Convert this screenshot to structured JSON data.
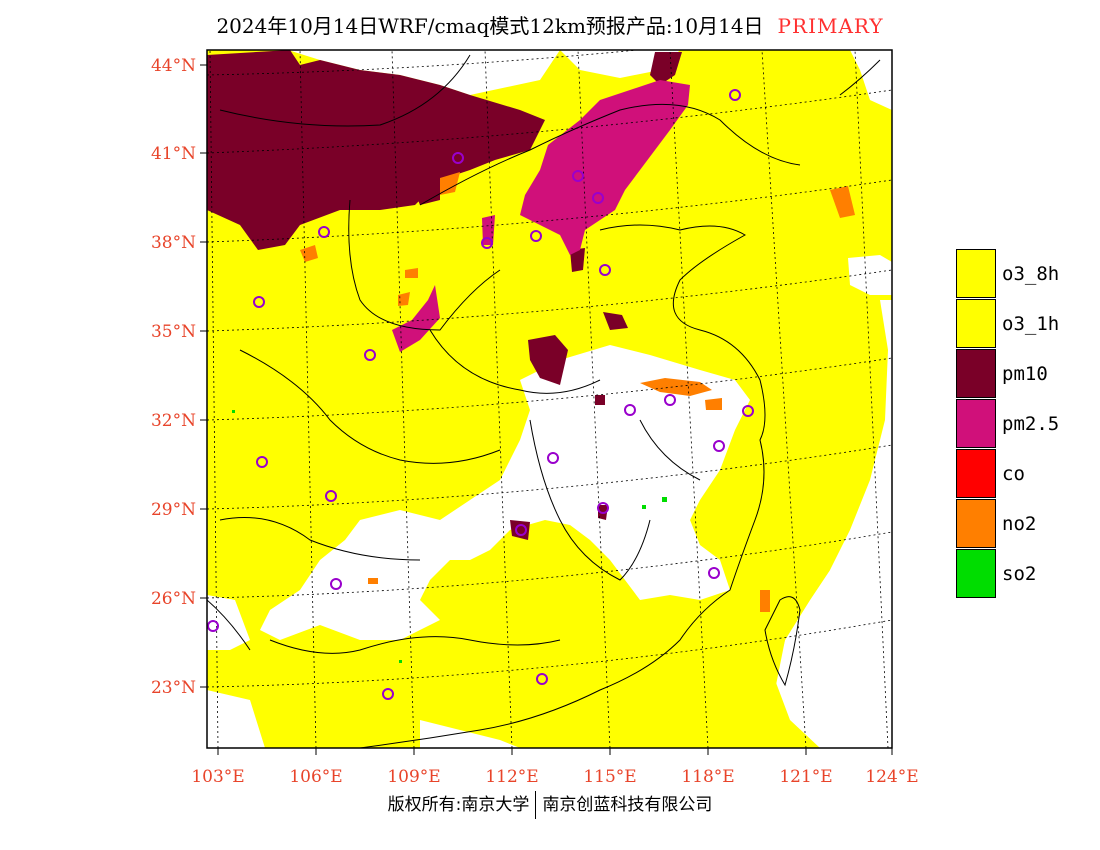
{
  "title": {
    "main": "2024年10月14日WRF/cmaq模式12km预报产品:10月14日",
    "tag": "PRIMARY"
  },
  "axes": {
    "lat_ticks": [
      "44°N",
      "41°N",
      "38°N",
      "35°N",
      "32°N",
      "29°N",
      "26°N",
      "23°N"
    ],
    "lon_ticks": [
      "103°E",
      "106°E",
      "109°E",
      "112°E",
      "115°E",
      "118°E",
      "121°E",
      "124°E"
    ],
    "label_color": "#e8442a"
  },
  "legend": [
    {
      "label": "o3_8h",
      "color": "#ffff00"
    },
    {
      "label": "o3_1h",
      "color": "#ffff00"
    },
    {
      "label": "pm10",
      "color": "#7a0028"
    },
    {
      "label": "pm2.5",
      "color": "#d0107a"
    },
    {
      "label": "co",
      "color": "#ff0000"
    },
    {
      "label": "no2",
      "color": "#ff7f00"
    },
    {
      "label": "so2",
      "color": "#00dd00"
    }
  ],
  "footer": {
    "left": "版权所有:南京大学",
    "right": "南京创蓝科技有限公司"
  }
}
